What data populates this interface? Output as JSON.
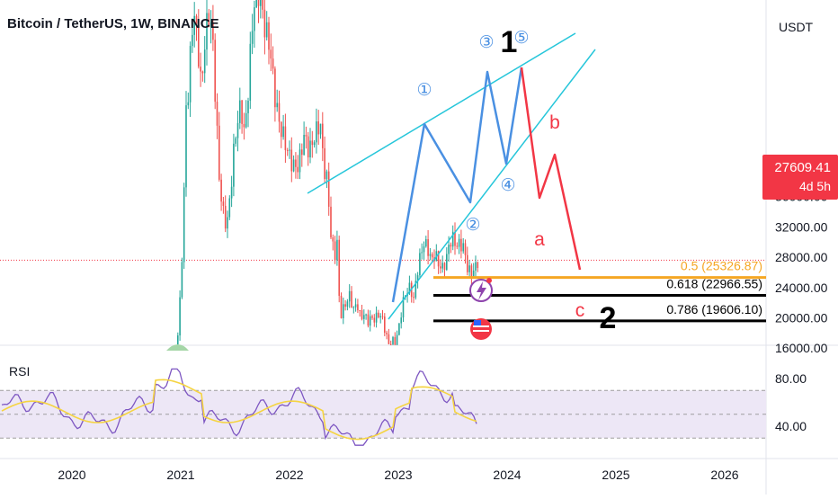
{
  "header": {
    "title": "Bitcoin / TetherUS, 1W, BINANCE",
    "currency": "USDT"
  },
  "price_badge": {
    "price": "27609.41",
    "countdown": "4d 5h"
  },
  "colors": {
    "price_line": "#f23645",
    "fib_05": "#f5a623",
    "fib_other": "#000000",
    "channel": "#26c6da",
    "impulse": "#4a90e2",
    "correction": "#f23645",
    "rsi": "#7e57c2",
    "rsi_ma": "#f5d442",
    "rsi_band": "#ede7f6",
    "up_candle": "#26a69a",
    "down_candle": "#ef5350"
  },
  "chart_data": {
    "type": "candlestick",
    "main_price_axis": {
      "ticks": [
        "36000.00",
        "32000.00",
        "28000.00",
        "24000.00",
        "20000.00",
        "16000.00"
      ]
    },
    "rsi_axis": {
      "ticks": [
        "80.00",
        "40.00"
      ]
    },
    "time_axis": {
      "ticks": [
        "2020",
        "2021",
        "2022",
        "2023",
        "2024",
        "2025",
        "2026"
      ]
    },
    "current_price": 27609.41,
    "rsi_label": "RSI",
    "fib_levels": [
      {
        "label": "0.5 (25326.87)",
        "value": 25326.87
      },
      {
        "label": "0.618 (22966.55)",
        "value": 22966.55
      },
      {
        "label": "0.786 (19606.10)",
        "value": 19606.1
      }
    ],
    "wave_labels": {
      "impulse": [
        "①",
        "②",
        "③",
        "④",
        "⑤"
      ],
      "degree": [
        "1",
        "2"
      ],
      "correction": [
        "a",
        "b",
        "c"
      ]
    }
  }
}
